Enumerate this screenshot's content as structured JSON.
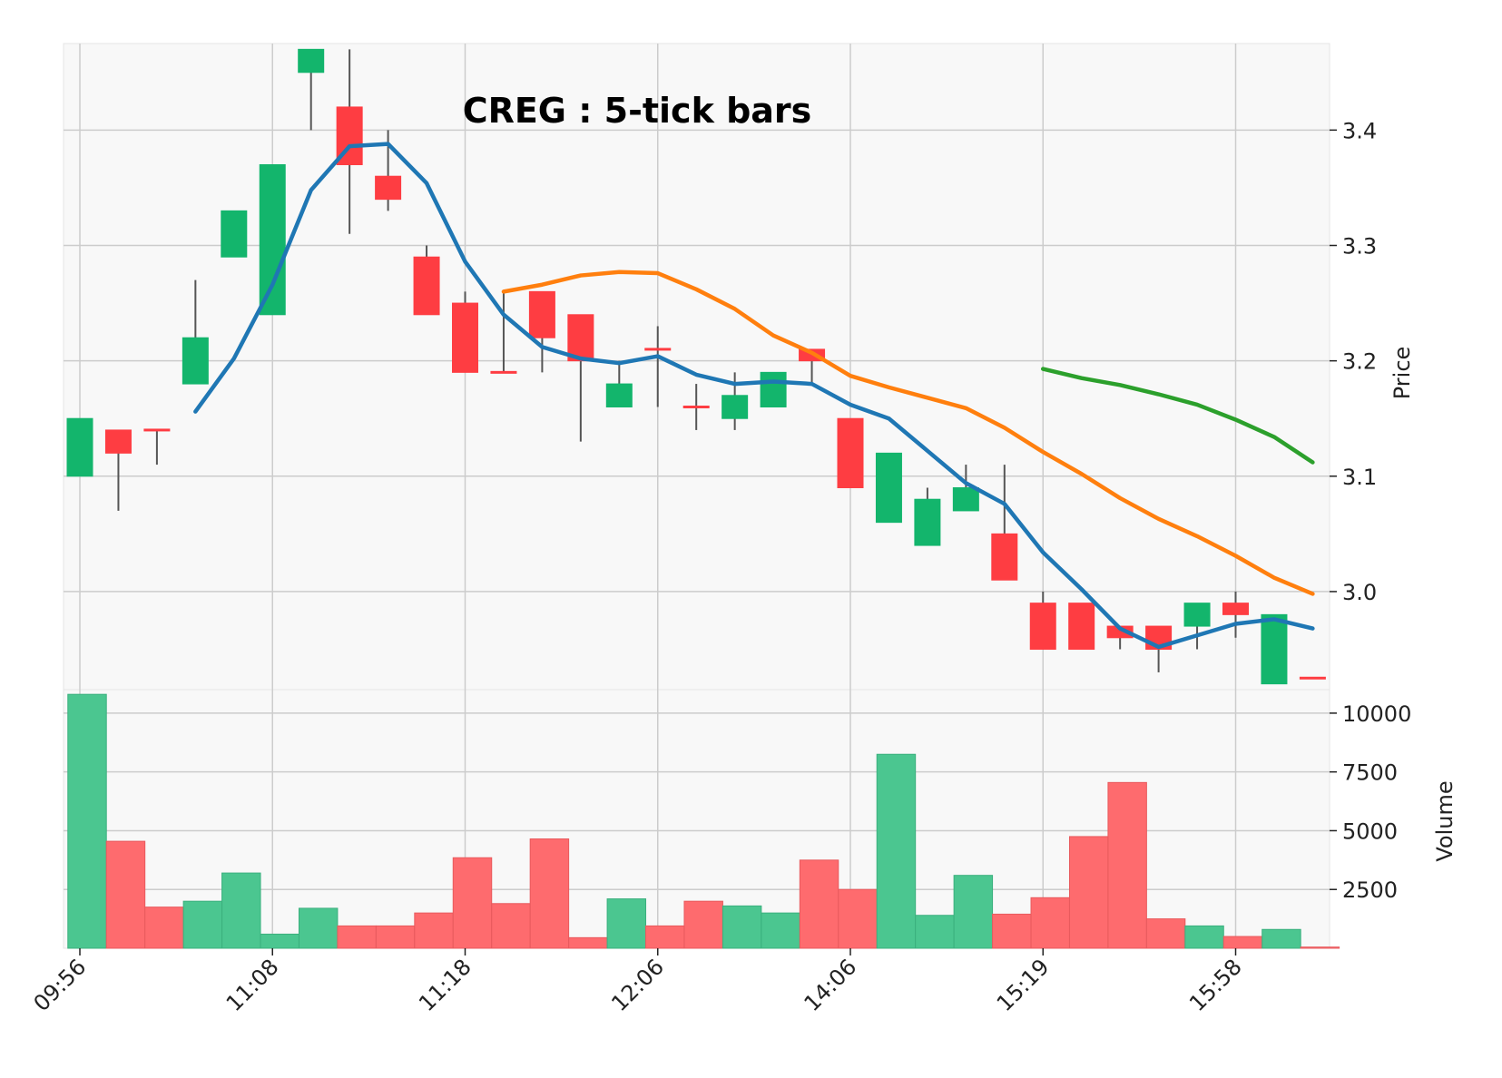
{
  "chart_data": {
    "type": "candlestick",
    "title": "CREG : 5-tick bars",
    "ylabel_price": "Price",
    "ylabel_volume": "Volume",
    "price_ylim": [
      2.915,
      3.475
    ],
    "volume_ylim": [
      0,
      11000
    ],
    "price_ticks": [
      3.0,
      3.1,
      3.2,
      3.3,
      3.4
    ],
    "price_tick_labels": [
      "3.0",
      "3.1",
      "3.2",
      "3.3",
      "3.4"
    ],
    "volume_ticks": [
      2500,
      5000,
      7500,
      10000
    ],
    "volume_tick_labels": [
      "2500",
      "5000",
      "7500",
      "10000"
    ],
    "x_tick_indices": [
      0,
      5,
      10,
      15,
      20,
      25,
      30
    ],
    "x_tick_labels": [
      "09:56",
      "11:08",
      "11:18",
      "12:06",
      "14:06",
      "15:19",
      "15:58"
    ],
    "grid": true,
    "colors": {
      "up": "#13b56c",
      "down": "#fe3d42",
      "wick": "#555555",
      "volume_up": "#4bc690",
      "volume_down": "#fe6b6e",
      "panel_bg": "#f8f8f8",
      "grid": "#cccccc",
      "ma_short": "#1f77b4",
      "ma_mid": "#ff7f0e",
      "ma_long": "#2ca02c"
    },
    "bars": [
      {
        "o": 3.1,
        "h": 3.15,
        "l": 3.1,
        "c": 3.15,
        "v": 10800
      },
      {
        "o": 3.14,
        "h": 3.14,
        "l": 3.07,
        "c": 3.12,
        "v": 4550
      },
      {
        "o": 3.14,
        "h": 3.14,
        "l": 3.11,
        "c": 3.14,
        "v": 1750
      },
      {
        "o": 3.18,
        "h": 3.27,
        "l": 3.18,
        "c": 3.22,
        "v": 2000
      },
      {
        "o": 3.29,
        "h": 3.33,
        "l": 3.29,
        "c": 3.33,
        "v": 3200
      },
      {
        "o": 3.24,
        "h": 3.37,
        "l": 3.24,
        "c": 3.37,
        "v": 600
      },
      {
        "o": 3.45,
        "h": 3.47,
        "l": 3.4,
        "c": 3.47,
        "v": 1700
      },
      {
        "o": 3.42,
        "h": 3.47,
        "l": 3.31,
        "c": 3.37,
        "v": 950
      },
      {
        "o": 3.36,
        "h": 3.4,
        "l": 3.33,
        "c": 3.34,
        "v": 950
      },
      {
        "o": 3.29,
        "h": 3.3,
        "l": 3.24,
        "c": 3.24,
        "v": 1500
      },
      {
        "o": 3.25,
        "h": 3.26,
        "l": 3.19,
        "c": 3.19,
        "v": 3850
      },
      {
        "o": 3.19,
        "h": 3.26,
        "l": 3.19,
        "c": 3.19,
        "v": 1900
      },
      {
        "o": 3.26,
        "h": 3.26,
        "l": 3.19,
        "c": 3.22,
        "v": 4650
      },
      {
        "o": 3.24,
        "h": 3.24,
        "l": 3.13,
        "c": 3.2,
        "v": 450
      },
      {
        "o": 3.16,
        "h": 3.2,
        "l": 3.16,
        "c": 3.18,
        "v": 2100
      },
      {
        "o": 3.21,
        "h": 3.23,
        "l": 3.16,
        "c": 3.21,
        "v": 950
      },
      {
        "o": 3.16,
        "h": 3.18,
        "l": 3.14,
        "c": 3.16,
        "v": 2000
      },
      {
        "o": 3.15,
        "h": 3.19,
        "l": 3.14,
        "c": 3.17,
        "v": 1800
      },
      {
        "o": 3.16,
        "h": 3.19,
        "l": 3.16,
        "c": 3.19,
        "v": 1500
      },
      {
        "o": 3.21,
        "h": 3.21,
        "l": 3.18,
        "c": 3.2,
        "v": 3750
      },
      {
        "o": 3.15,
        "h": 3.15,
        "l": 3.09,
        "c": 3.09,
        "v": 2500
      },
      {
        "o": 3.06,
        "h": 3.12,
        "l": 3.06,
        "c": 3.12,
        "v": 8250
      },
      {
        "o": 3.04,
        "h": 3.09,
        "l": 3.04,
        "c": 3.08,
        "v": 1400
      },
      {
        "o": 3.07,
        "h": 3.11,
        "l": 3.07,
        "c": 3.09,
        "v": 3100
      },
      {
        "o": 3.05,
        "h": 3.11,
        "l": 3.01,
        "c": 3.01,
        "v": 1450
      },
      {
        "o": 2.99,
        "h": 3.0,
        "l": 2.95,
        "c": 2.95,
        "v": 2150
      },
      {
        "o": 2.99,
        "h": 2.99,
        "l": 2.95,
        "c": 2.95,
        "v": 4750
      },
      {
        "o": 2.97,
        "h": 2.97,
        "l": 2.95,
        "c": 2.96,
        "v": 7050
      },
      {
        "o": 2.97,
        "h": 2.97,
        "l": 2.93,
        "c": 2.95,
        "v": 1250
      },
      {
        "o": 2.97,
        "h": 2.99,
        "l": 2.95,
        "c": 2.99,
        "v": 950
      },
      {
        "o": 2.99,
        "h": 3.0,
        "l": 2.96,
        "c": 2.98,
        "v": 500
      },
      {
        "o": 2.92,
        "h": 2.98,
        "l": 2.92,
        "c": 2.98,
        "v": 800
      },
      {
        "o": 2.925,
        "h": 2.925,
        "l": 2.925,
        "c": 2.925,
        "v": 50
      }
    ],
    "moving_averages": [
      {
        "key": "ma_short",
        "start": 3,
        "values": [
          3.156,
          3.202,
          3.266,
          3.348,
          3.386,
          3.388,
          3.354,
          3.286,
          3.24,
          3.212,
          3.202,
          3.198,
          3.204,
          3.188,
          3.18,
          3.182,
          3.18,
          3.162,
          3.15,
          3.122,
          3.094,
          3.076,
          3.034,
          3.002,
          2.968,
          2.952,
          2.962,
          2.972,
          2.976,
          2.968
        ]
      },
      {
        "key": "ma_mid",
        "start": 11,
        "values": [
          3.26,
          3.266,
          3.274,
          3.277,
          3.276,
          3.262,
          3.245,
          3.222,
          3.207,
          3.187,
          3.177,
          3.168,
          3.159,
          3.142,
          3.121,
          3.102,
          3.081,
          3.063,
          3.048,
          3.031,
          3.012,
          2.998
        ]
      },
      {
        "key": "ma_long",
        "start": 25,
        "values": [
          3.193,
          3.185,
          3.179,
          3.171,
          3.162,
          3.149,
          3.134,
          3.112
        ]
      }
    ]
  }
}
